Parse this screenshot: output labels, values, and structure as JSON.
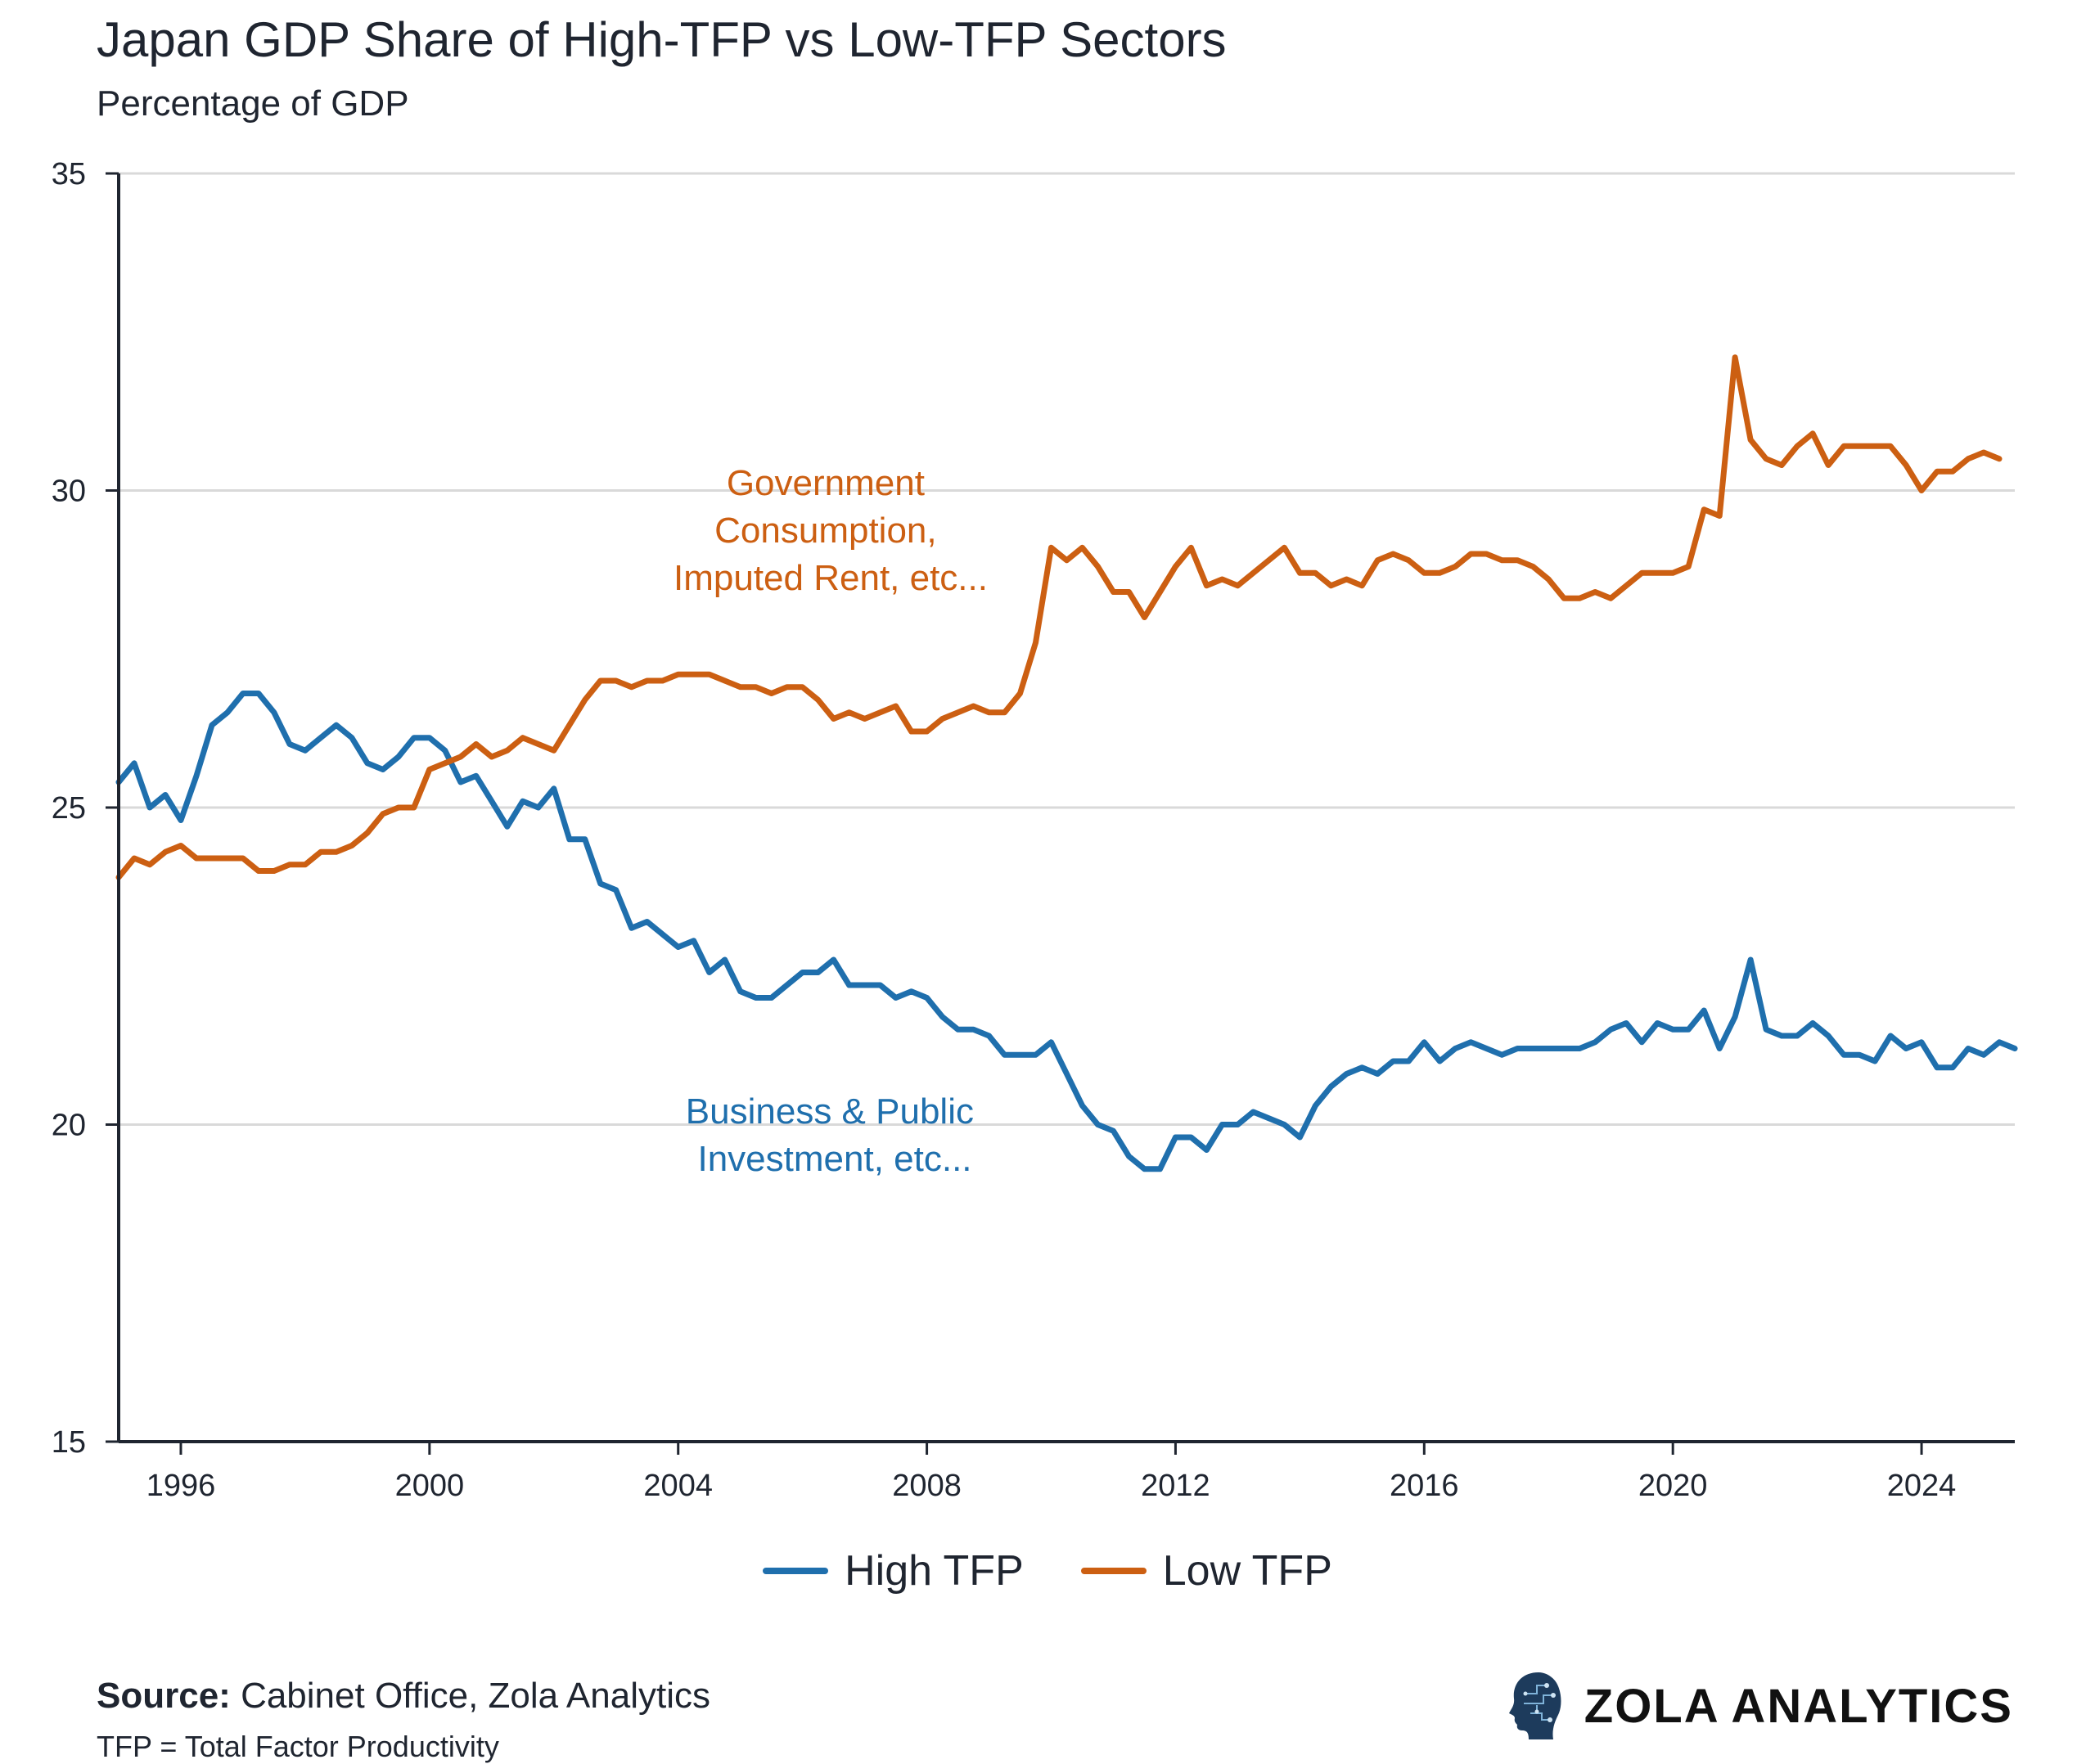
{
  "title": "Japan GDP Share of High-TFP vs Low-TFP Sectors",
  "subtitle": "Percentage of GDP",
  "colors": {
    "high": "#1f6fad",
    "low": "#cc5f12",
    "grid": "#d9d9d9",
    "axis": "#1f2530"
  },
  "annotations": {
    "low_lines": [
      "Government",
      "Consumption,",
      "Imputed Rent, etc..."
    ],
    "high_lines": [
      "Business & Public",
      "Investment, etc..."
    ]
  },
  "legend": [
    {
      "name": "High TFP",
      "color": "#1f6fad"
    },
    {
      "name": "Low TFP",
      "color": "#cc5f12"
    }
  ],
  "source_label": "Source:",
  "source_text": "Cabinet Office, Zola Analytics",
  "footnote": "TFP = Total Factor Productivity",
  "brand": "ZOLA ANALYTICS",
  "chart_data": {
    "type": "line",
    "title": "Japan GDP Share of High-TFP vs Low-TFP Sectors",
    "ylabel": "Percentage of GDP",
    "xlabel": "",
    "xlim": [
      1995.0,
      2025.5
    ],
    "ylim": [
      15,
      35
    ],
    "yticks": [
      15,
      20,
      25,
      30,
      35
    ],
    "xticks": [
      1996,
      2000,
      2004,
      2008,
      2012,
      2016,
      2020,
      2024
    ],
    "x_start": 1995.0,
    "x_step": 0.25,
    "grid": "horizontal",
    "legend_position": "bottom-center",
    "series": [
      {
        "name": "High TFP",
        "values": [
          25.4,
          25.7,
          25.0,
          25.2,
          24.8,
          25.5,
          26.3,
          26.5,
          26.8,
          26.8,
          26.5,
          26.0,
          25.9,
          26.1,
          26.3,
          26.1,
          25.7,
          25.6,
          25.8,
          26.1,
          26.1,
          25.9,
          25.4,
          25.5,
          25.1,
          24.7,
          25.1,
          25.0,
          25.3,
          24.5,
          24.5,
          23.8,
          23.7,
          23.1,
          23.2,
          23.0,
          22.8,
          22.9,
          22.4,
          22.6,
          22.1,
          22.0,
          22.0,
          22.2,
          22.4,
          22.4,
          22.6,
          22.2,
          22.2,
          22.2,
          22.0,
          22.1,
          22.0,
          21.7,
          21.5,
          21.5,
          21.4,
          21.1,
          21.1,
          21.1,
          21.3,
          20.8,
          20.3,
          20.0,
          19.9,
          19.5,
          19.3,
          19.3,
          19.8,
          19.8,
          19.6,
          20.0,
          20.0,
          20.2,
          20.1,
          20.0,
          19.8,
          20.3,
          20.6,
          20.8,
          20.9,
          20.8,
          21.0,
          21.0,
          21.3,
          21.0,
          21.2,
          21.3,
          21.2,
          21.1,
          21.2,
          21.2,
          21.2,
          21.2,
          21.2,
          21.3,
          21.5,
          21.6,
          21.3,
          21.6,
          21.5,
          21.5,
          21.8,
          21.2,
          21.7,
          22.6,
          21.5,
          21.4,
          21.4,
          21.6,
          21.4,
          21.1,
          21.1,
          21.0,
          21.4,
          21.2,
          21.3,
          20.9,
          20.9,
          21.2,
          21.1,
          21.3,
          21.2
        ]
      },
      {
        "name": "Low TFP",
        "values": [
          23.9,
          24.2,
          24.1,
          24.3,
          24.4,
          24.2,
          24.2,
          24.2,
          24.2,
          24.0,
          24.0,
          24.1,
          24.1,
          24.3,
          24.3,
          24.4,
          24.6,
          24.9,
          25.0,
          25.0,
          25.6,
          25.7,
          25.8,
          26.0,
          25.8,
          25.9,
          26.1,
          26.0,
          25.9,
          26.3,
          26.7,
          27.0,
          27.0,
          26.9,
          27.0,
          27.0,
          27.1,
          27.1,
          27.1,
          27.0,
          26.9,
          26.9,
          26.8,
          26.9,
          26.9,
          26.7,
          26.4,
          26.5,
          26.4,
          26.5,
          26.6,
          26.2,
          26.2,
          26.4,
          26.5,
          26.6,
          26.5,
          26.5,
          26.8,
          27.6,
          29.1,
          28.9,
          29.1,
          28.8,
          28.4,
          28.4,
          28.0,
          28.4,
          28.8,
          29.1,
          28.5,
          28.6,
          28.5,
          28.7,
          28.9,
          29.1,
          28.7,
          28.7,
          28.5,
          28.6,
          28.5,
          28.9,
          29.0,
          28.9,
          28.7,
          28.7,
          28.8,
          29.0,
          29.0,
          28.9,
          28.9,
          28.8,
          28.6,
          28.3,
          28.3,
          28.4,
          28.3,
          28.5,
          28.7,
          28.7,
          28.7,
          28.8,
          29.7,
          29.6,
          32.1,
          30.8,
          30.5,
          30.4,
          30.7,
          30.9,
          30.4,
          30.7,
          30.7,
          30.7,
          30.7,
          30.4,
          30.0,
          30.3,
          30.3,
          30.5,
          30.6,
          30.5
        ]
      }
    ]
  }
}
